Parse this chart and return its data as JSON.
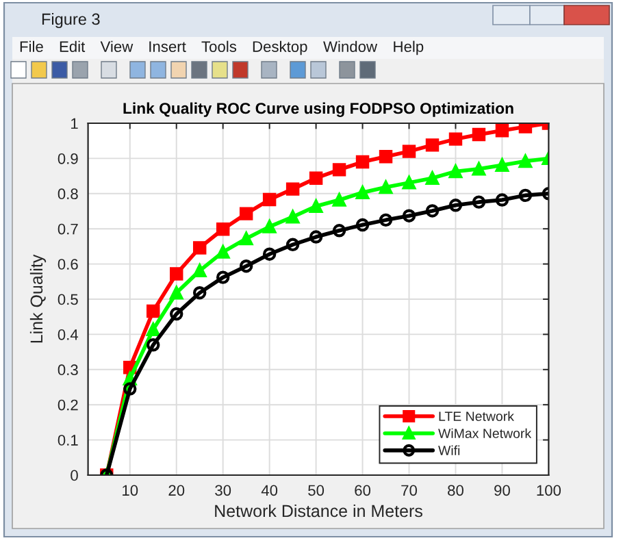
{
  "chart_data": {
    "type": "line",
    "title": "Link Quality ROC Curve using FODPSO Optimization",
    "xlabel": "Network Distance in Meters",
    "ylabel": "Link Quality",
    "x": [
      5,
      10,
      15,
      20,
      25,
      30,
      35,
      40,
      45,
      50,
      55,
      60,
      65,
      70,
      75,
      80,
      85,
      90,
      95,
      100
    ],
    "series": [
      {
        "name": "LTE Network",
        "color": "#ff0000",
        "marker": "square",
        "values": [
          0,
          0.306,
          0.466,
          0.572,
          0.646,
          0.699,
          0.743,
          0.783,
          0.813,
          0.844,
          0.868,
          0.89,
          0.905,
          0.92,
          0.938,
          0.955,
          0.968,
          0.979,
          0.99,
          1.0
        ]
      },
      {
        "name": "WiMax Network",
        "color": "#00ff00",
        "marker": "triangle",
        "values": [
          0,
          0.274,
          0.414,
          0.518,
          0.581,
          0.634,
          0.672,
          0.706,
          0.734,
          0.764,
          0.782,
          0.803,
          0.818,
          0.831,
          0.844,
          0.863,
          0.87,
          0.881,
          0.892,
          0.9
        ]
      },
      {
        "name": "Wifi",
        "color": "#000000",
        "marker": "circle",
        "values": [
          0,
          0.245,
          0.37,
          0.458,
          0.518,
          0.562,
          0.594,
          0.628,
          0.655,
          0.677,
          0.695,
          0.711,
          0.725,
          0.737,
          0.751,
          0.767,
          0.776,
          0.782,
          0.795,
          0.8
        ]
      }
    ],
    "xlim": [
      1,
      100
    ],
    "ylim": [
      0,
      1
    ],
    "xticks": [
      10,
      20,
      30,
      40,
      50,
      60,
      70,
      80,
      90,
      100
    ],
    "yticks": [
      0,
      0.1,
      0.2,
      0.3,
      0.4,
      0.5,
      0.6,
      0.7,
      0.8,
      0.9,
      1
    ],
    "grid": true,
    "legend": "bottom right",
    "line_style": "solid",
    "annotations": [
      "Figure 3",
      "File",
      "Edit",
      "View",
      "Insert",
      "Tools",
      "Desktop",
      "Window",
      "Help"
    ]
  }
}
